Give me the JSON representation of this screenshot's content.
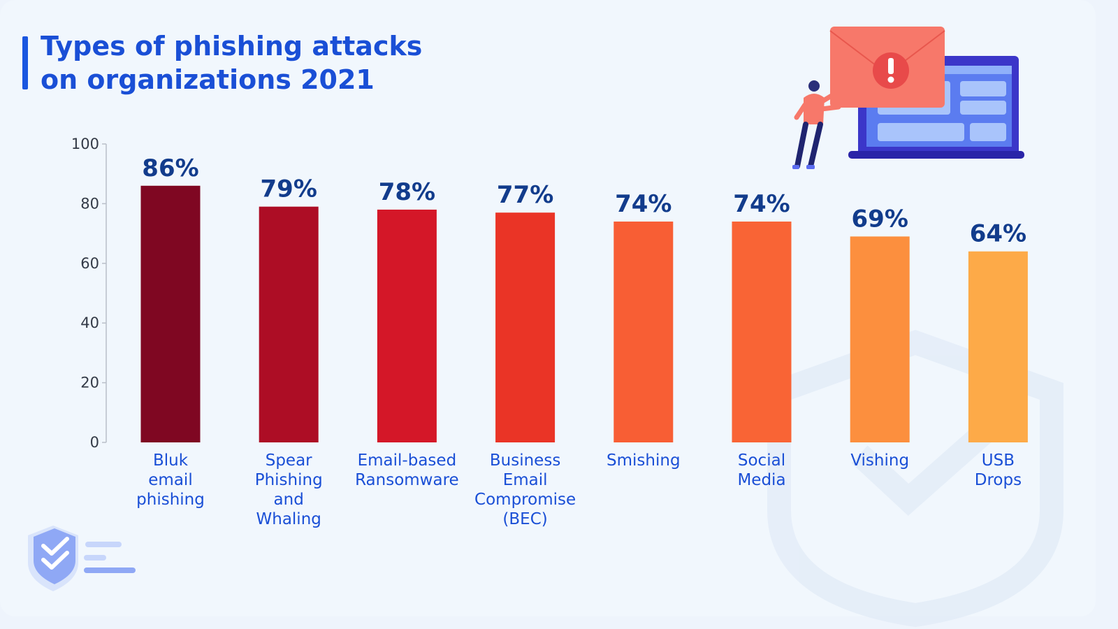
{
  "header": {
    "title_line1": "Types of phishing attacks",
    "title_line2": "on organizations 2021"
  },
  "chart_data": {
    "type": "bar",
    "title": "Types of phishing attacks on organizations 2021",
    "categories": [
      [
        "Bluk",
        "email",
        "phishing"
      ],
      [
        "Spear",
        "Phishing",
        "and",
        "Whaling"
      ],
      [
        "Email-based",
        "Ransomware"
      ],
      [
        "Business",
        "Email",
        "Compromise",
        "(BEC)"
      ],
      [
        "Smishing"
      ],
      [
        "Social",
        "Media"
      ],
      [
        "Vishing"
      ],
      [
        "USB",
        "Drops"
      ]
    ],
    "values": [
      86,
      79,
      78,
      77,
      74,
      74,
      69,
      64
    ],
    "value_labels": [
      "86%",
      "79%",
      "78%",
      "77%",
      "74%",
      "74%",
      "69%",
      "64%"
    ],
    "bar_colors": [
      "#7f0722",
      "#ad0d25",
      "#d41728",
      "#ea3426",
      "#f85e34",
      "#f96435",
      "#fc8f3e",
      "#fdaa48"
    ],
    "ylim": [
      0,
      100
    ],
    "yticks": [
      0,
      20,
      40,
      60,
      80,
      100
    ],
    "xlabel": "",
    "ylabel": "",
    "grid": false,
    "legend": "none"
  },
  "decor": {
    "illustration": "person-holding-alert-envelope-by-laptop",
    "logo": "shield-check-logo",
    "colors": {
      "title": "#1a4fd6",
      "value_label": "#123c8c",
      "laptop": "#3b36c9",
      "envelope": "#f7786a"
    }
  }
}
